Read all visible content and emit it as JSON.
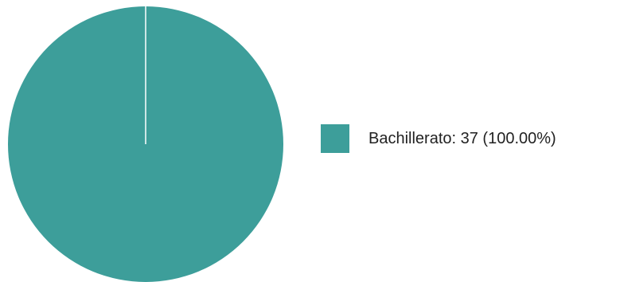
{
  "chart_data": {
    "type": "pie",
    "title": "",
    "slices": [
      {
        "label": "Bachillerato",
        "value": 37,
        "percent": 100.0,
        "legend_text": "Bachillerato: 37 (100.00%)",
        "color": "#3d9e9a"
      }
    ],
    "legend_position": "right",
    "grid": false
  }
}
